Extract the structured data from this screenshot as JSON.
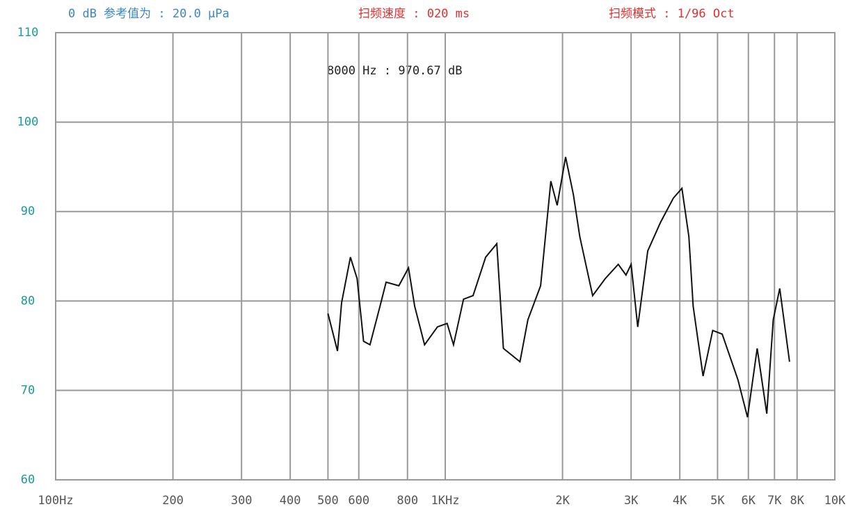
{
  "chart_data": {
    "type": "line",
    "header": [
      "0 dB 参考值为 : 20.0 μPa",
      "扫频速度 : 020 ms",
      "扫频模式 : 1/96 Oct"
    ],
    "annotation": "8000 Hz : 970.67 dB",
    "x": [
      500,
      529,
      542,
      571,
      594,
      617,
      641,
      680,
      705,
      760,
      805,
      835,
      885,
      955,
      1011,
      1050,
      1114,
      1179,
      1270,
      1356,
      1410,
      1555,
      1630,
      1757,
      1867,
      1938,
      2037,
      2133,
      2215,
      2390,
      2575,
      2780,
      2910,
      3000,
      3120,
      3310,
      3570,
      3850,
      4050,
      4220,
      4330,
      4590,
      4860,
      5140,
      5640,
      5970,
      6320,
      6690,
      6950,
      7220,
      7650
    ],
    "series": [
      {
        "color": "#111111",
        "values": [
          78.6,
          74.4,
          79.8,
          84.9,
          82.5,
          75.5,
          75.1,
          79.4,
          82.1,
          81.7,
          83.7,
          79.4,
          75.1,
          77.1,
          77.5,
          75.1,
          80.2,
          80.6,
          84.9,
          86.4,
          74.7,
          73.2,
          77.9,
          81.7,
          93.4,
          90.7,
          96.1,
          91.9,
          87.2,
          80.6,
          82.5,
          84.1,
          82.9,
          84.1,
          77.1,
          85.6,
          88.8,
          91.5,
          92.6,
          87.2,
          79.4,
          71.6,
          76.7,
          76.3,
          71.2,
          67.0,
          74.7,
          67.4,
          77.9,
          81.4,
          73.2
        ]
      }
    ],
    "xlim": [
      100,
      10000
    ],
    "xlog": true,
    "xticks": [
      {
        "value": 100,
        "label": "100Hz"
      },
      200,
      300,
      400,
      500,
      600,
      800,
      {
        "value": 1000,
        "label": "1KHz"
      },
      {
        "value": 2000,
        "label": "2K"
      },
      {
        "value": 3000,
        "label": "3K"
      },
      {
        "value": 4000,
        "label": "4K"
      },
      {
        "value": 5000,
        "label": "5K"
      },
      {
        "value": 6000,
        "label": "6K"
      },
      {
        "value": 7000,
        "label": "7K"
      },
      {
        "value": 8000,
        "label": "8K"
      },
      {
        "value": 10000,
        "label": "10K"
      }
    ],
    "ylim": [
      60,
      110
    ],
    "yticks": [
      60,
      70,
      80,
      90,
      100,
      110
    ],
    "grid": true
  }
}
